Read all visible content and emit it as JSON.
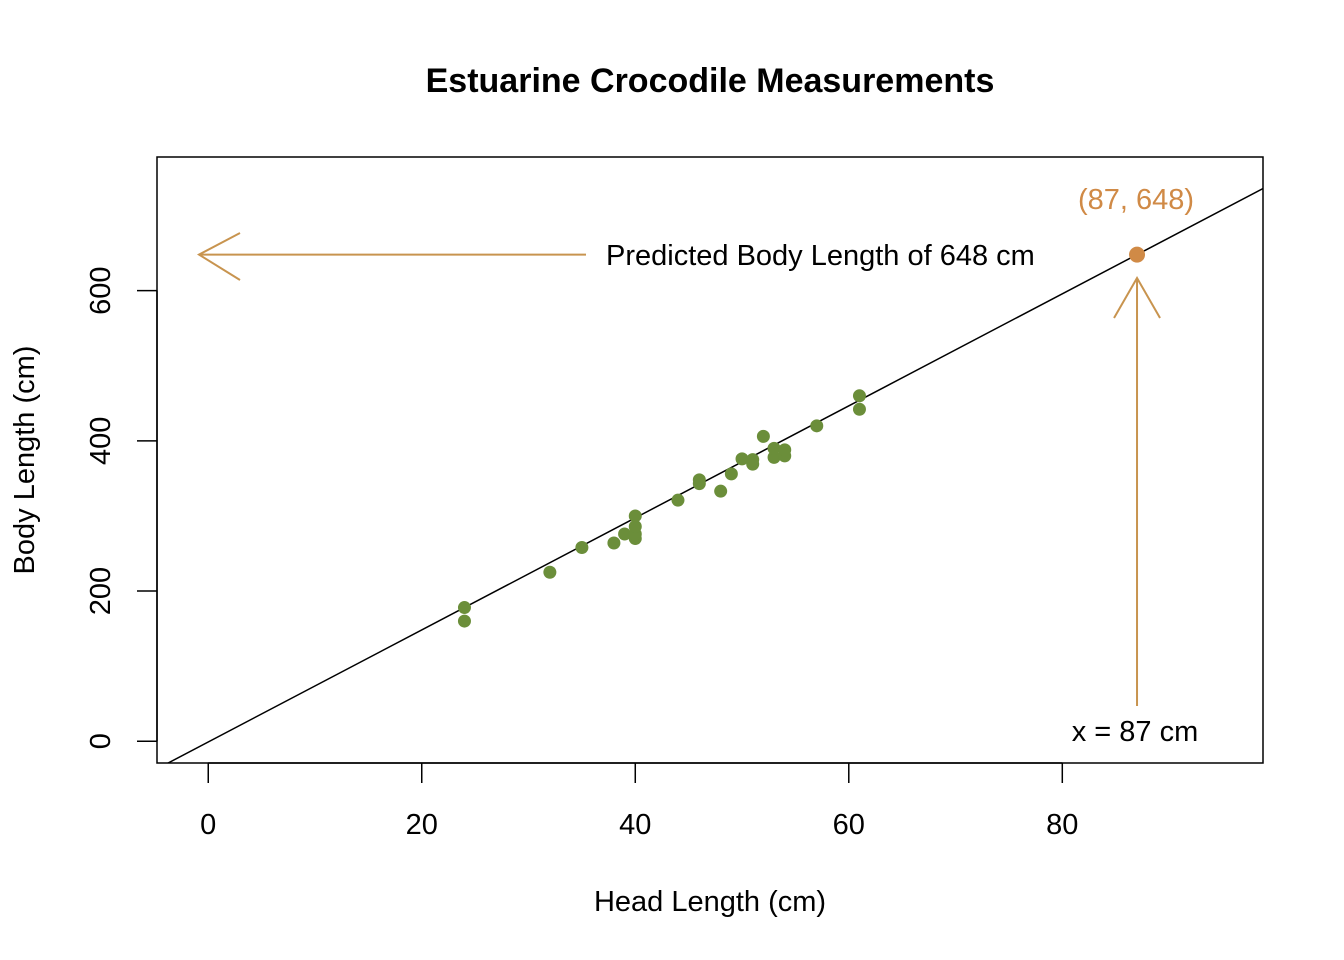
{
  "chart_data": {
    "type": "scatter",
    "title": "Estuarine Crocodile Measurements",
    "xlabel": "Head Length (cm)",
    "ylabel": "Body Length (cm)",
    "xlim": [
      -4.8,
      98.8
    ],
    "ylim": [
      -29,
      778
    ],
    "x_ticks": [
      0,
      20,
      40,
      60,
      80
    ],
    "y_ticks": [
      0,
      200,
      400,
      600
    ],
    "grid": false,
    "legend": "none",
    "colors": {
      "points": "#6b8e3a",
      "highlight": "#d08a46",
      "arrow": "#c8944f",
      "line": "#000000"
    },
    "series": [
      {
        "x": [
          24,
          24,
          32,
          35,
          38,
          39,
          40,
          40,
          40,
          40,
          44,
          46,
          46,
          48,
          49,
          50,
          51,
          51,
          52,
          53,
          53,
          54,
          54,
          57,
          61,
          61
        ],
        "y": [
          160,
          178,
          225,
          258,
          264,
          276,
          270,
          276,
          286,
          300,
          321,
          343,
          348,
          333,
          356,
          376,
          369,
          375,
          406,
          378,
          390,
          380,
          388,
          420,
          442,
          460
        ]
      }
    ],
    "regression_line": {
      "intercept": -1.0,
      "slope": 7.46
    },
    "highlight_point": {
      "x": 87,
      "y": 648,
      "label": "(87, 648)"
    },
    "annotations": {
      "horizontal": "Predicted Body Length of 648 cm",
      "vertical": "x = 87 cm"
    }
  }
}
